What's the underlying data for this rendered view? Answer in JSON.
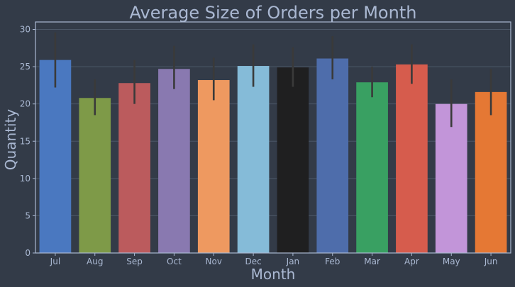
{
  "chart_data": {
    "type": "bar",
    "title": "Average Size of Orders per Month",
    "xlabel": "Month",
    "ylabel": "Quantity",
    "ylim": [
      0,
      31
    ],
    "yticks": [
      0,
      5,
      10,
      15,
      20,
      25,
      30
    ],
    "grid": true,
    "legend": "none",
    "categories": [
      "Jul",
      "Aug",
      "Sep",
      "Oct",
      "Nov",
      "Dec",
      "Jan",
      "Feb",
      "Mar",
      "Apr",
      "May",
      "Jun"
    ],
    "values": [
      25.9,
      20.8,
      22.8,
      24.7,
      23.2,
      25.1,
      24.9,
      26.1,
      22.9,
      25.3,
      20.0,
      21.6
    ],
    "error_low": [
      22.2,
      18.5,
      20.0,
      22.0,
      20.5,
      22.3,
      22.3,
      23.3,
      20.9,
      22.7,
      16.9,
      18.5
    ],
    "error_high": [
      29.6,
      23.3,
      25.9,
      27.8,
      26.2,
      28.0,
      27.6,
      29.1,
      25.0,
      28.0,
      23.3,
      24.7
    ],
    "bar_colors": [
      "#4a78c0",
      "#7e9a48",
      "#bb5b5d",
      "#8979b0",
      "#ee9960",
      "#85bbd8",
      "#1f1f20",
      "#4e6dab",
      "#39a062",
      "#d65c4d",
      "#c295d9",
      "#e57834"
    ],
    "colors": {
      "background": "#333b48",
      "grid": "#4d5868",
      "axis": "#aab8d2",
      "errorbar": "#3a3a3a"
    }
  }
}
